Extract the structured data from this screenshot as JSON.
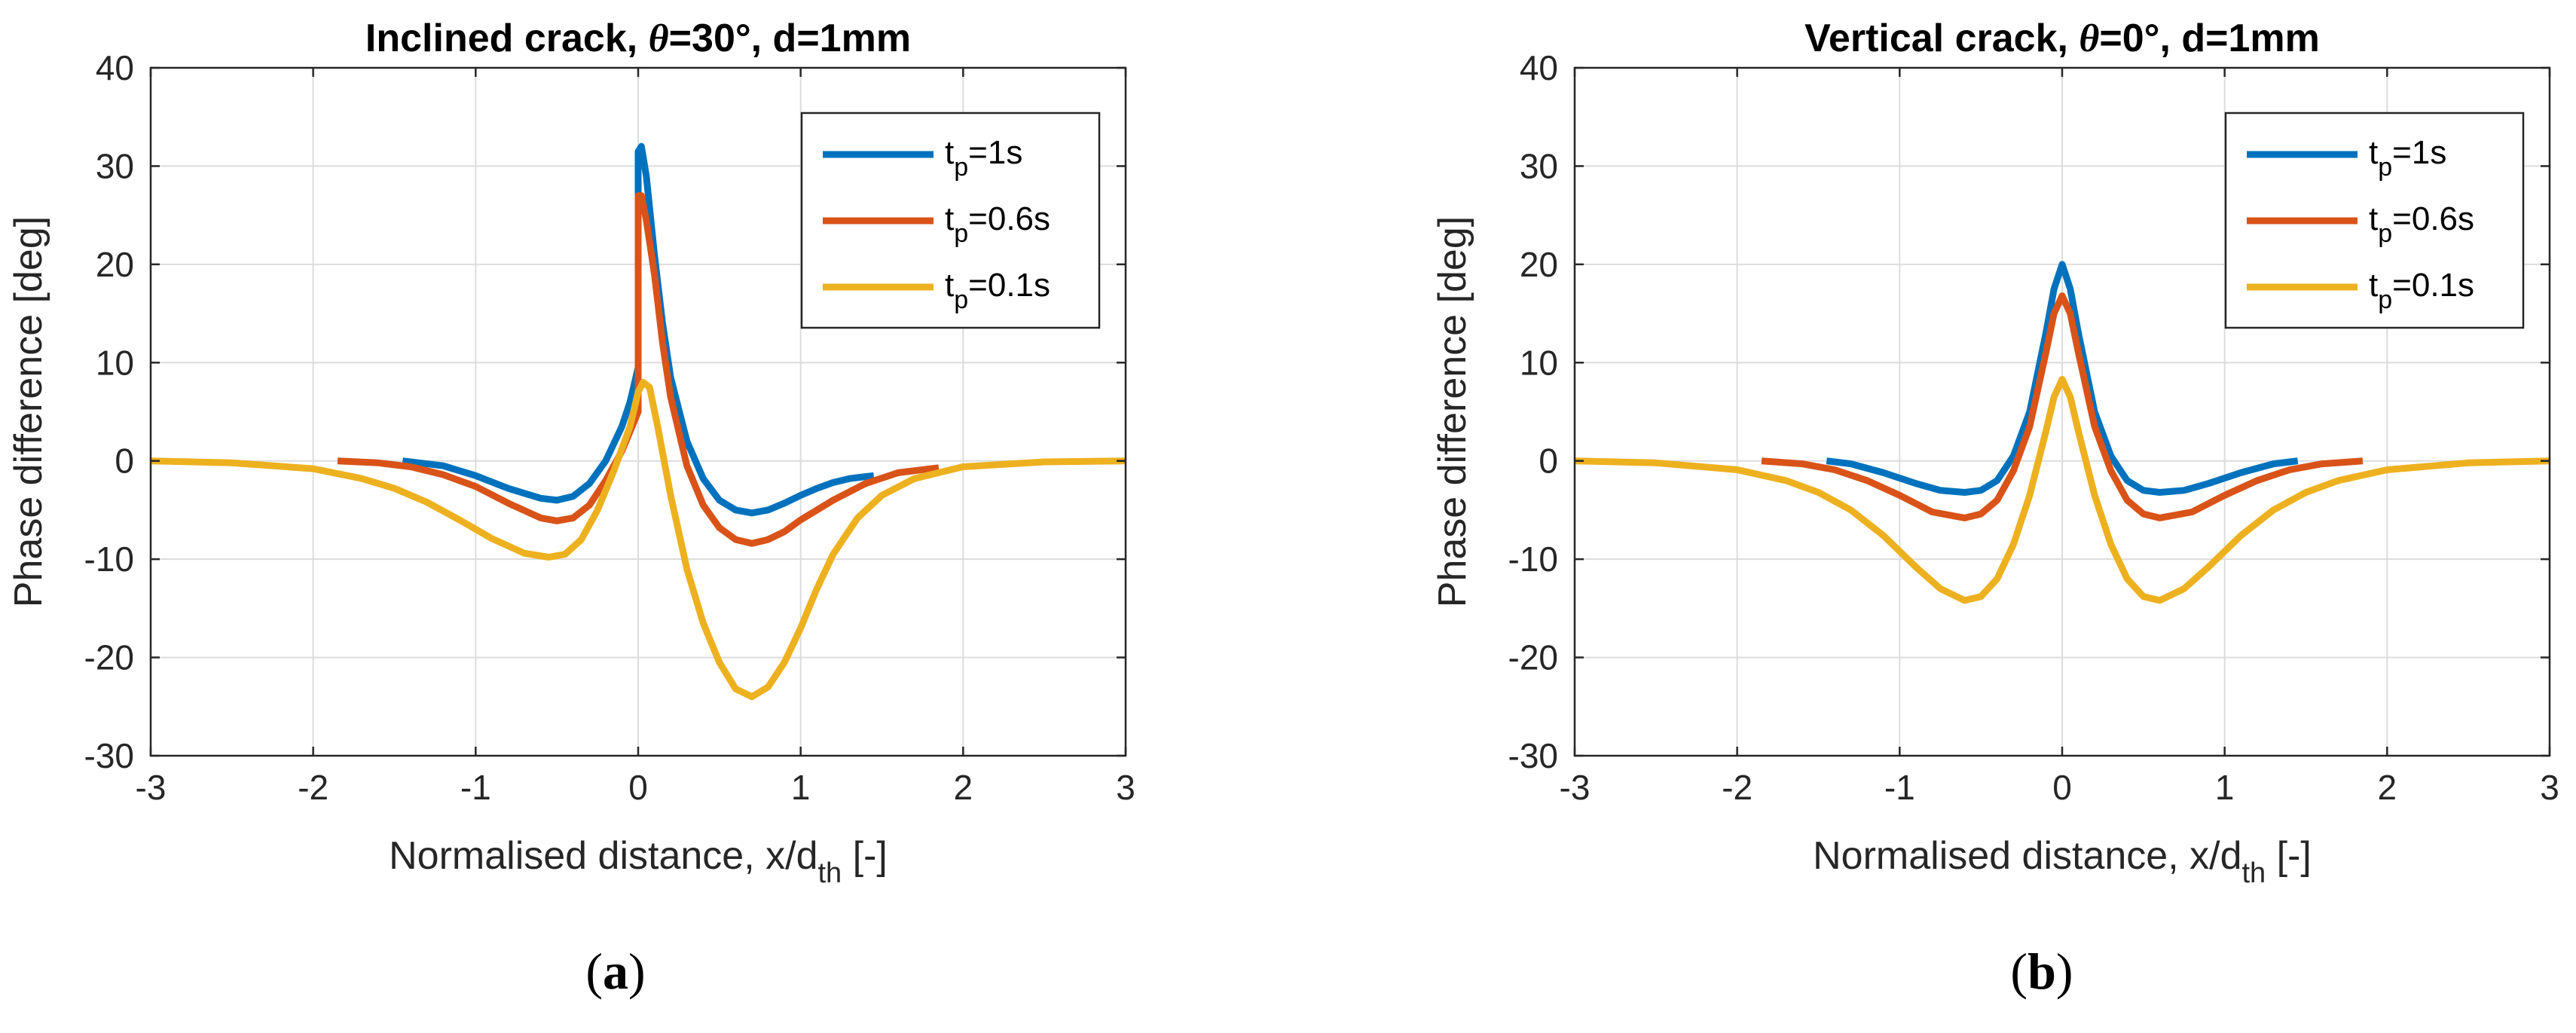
{
  "chart_data": [
    {
      "panel": "(a)",
      "panel_letter": "a",
      "type": "line",
      "title_prefix": "Inclined crack, ",
      "title_theta": "θ",
      "title_suffix": "=30°, d=1mm",
      "xlabel_main": "Normalised distance, x/d",
      "xlabel_sub": "th",
      "xlabel_end": " [-]",
      "ylabel": "Phase difference [deg]",
      "xlim": [
        -3,
        3
      ],
      "ylim": [
        -30,
        40
      ],
      "xticks": [
        "-3",
        "-2",
        "-1",
        "0",
        "1",
        "2",
        "3"
      ],
      "yticks": [
        "-30",
        "-20",
        "-10",
        "0",
        "10",
        "20",
        "30",
        "40"
      ],
      "grid": true,
      "legend_position": "top-right",
      "series": [
        {
          "name": "t_p=1s",
          "label_main": "t",
          "label_sub": "p",
          "label_end": "=1s",
          "color": "#0072BD",
          "x": [
            -1.45,
            -1.2,
            -1.0,
            -0.8,
            -0.6,
            -0.5,
            -0.4,
            -0.3,
            -0.2,
            -0.1,
            -0.05,
            0.0,
            0.0,
            0.02,
            0.05,
            0.1,
            0.15,
            0.2,
            0.3,
            0.4,
            0.5,
            0.6,
            0.7,
            0.8,
            0.9,
            1.0,
            1.1,
            1.2,
            1.3,
            1.45
          ],
          "y": [
            0,
            -0.5,
            -1.5,
            -2.8,
            -3.8,
            -4.0,
            -3.6,
            -2.3,
            0,
            3.5,
            6.0,
            9.5,
            31.5,
            32.0,
            29.0,
            21.0,
            14.0,
            8.5,
            2.0,
            -1.8,
            -4.0,
            -5.0,
            -5.3,
            -5.0,
            -4.3,
            -3.5,
            -2.8,
            -2.2,
            -1.8,
            -1.5
          ]
        },
        {
          "name": "t_p=0.6s",
          "label_main": "t",
          "label_sub": "p",
          "label_end": "=0.6s",
          "color": "#D95319",
          "x": [
            -1.85,
            -1.6,
            -1.4,
            -1.2,
            -1.0,
            -0.8,
            -0.6,
            -0.5,
            -0.4,
            -0.3,
            -0.2,
            -0.1,
            -0.05,
            0.0,
            0.0,
            0.02,
            0.05,
            0.1,
            0.15,
            0.2,
            0.3,
            0.4,
            0.5,
            0.6,
            0.7,
            0.8,
            0.9,
            1.0,
            1.2,
            1.4,
            1.6,
            1.85
          ],
          "y": [
            0,
            -0.2,
            -0.6,
            -1.4,
            -2.6,
            -4.3,
            -5.8,
            -6.1,
            -5.8,
            -4.5,
            -2.0,
            1.0,
            3.0,
            5.0,
            27.0,
            27.0,
            24.5,
            19.0,
            12.0,
            6.5,
            -0.5,
            -4.5,
            -6.8,
            -8.0,
            -8.4,
            -8.0,
            -7.2,
            -6.0,
            -4.0,
            -2.3,
            -1.2,
            -0.7
          ]
        },
        {
          "name": "t_p=0.1s",
          "label_main": "t",
          "label_sub": "p",
          "label_end": "=0.1s",
          "color": "#EDB120",
          "x": [
            -3.0,
            -2.5,
            -2.0,
            -1.7,
            -1.5,
            -1.3,
            -1.1,
            -0.9,
            -0.7,
            -0.55,
            -0.45,
            -0.35,
            -0.25,
            -0.15,
            -0.05,
            0.0,
            0.03,
            0.07,
            0.12,
            0.2,
            0.3,
            0.4,
            0.5,
            0.6,
            0.7,
            0.8,
            0.9,
            1.0,
            1.1,
            1.2,
            1.35,
            1.5,
            1.7,
            2.0,
            2.5,
            3.0
          ],
          "y": [
            0,
            -0.2,
            -0.8,
            -1.8,
            -2.8,
            -4.2,
            -6.0,
            -7.9,
            -9.4,
            -9.8,
            -9.5,
            -8.0,
            -5.0,
            -1.0,
            3.5,
            7.0,
            8.0,
            7.5,
            3.5,
            -3.5,
            -11.0,
            -16.5,
            -20.5,
            -23.2,
            -24.0,
            -23.0,
            -20.5,
            -17.0,
            -13.0,
            -9.5,
            -5.8,
            -3.5,
            -1.8,
            -0.6,
            -0.1,
            0
          ]
        }
      ]
    },
    {
      "panel": "(b)",
      "panel_letter": "b",
      "type": "line",
      "title_prefix": "Vertical crack, ",
      "title_theta": "θ",
      "title_suffix": "=0°, d=1mm",
      "xlabel_main": "Normalised distance, x/d",
      "xlabel_sub": "th",
      "xlabel_end": " [-]",
      "ylabel": "Phase difference [deg]",
      "xlim": [
        -3,
        3
      ],
      "ylim": [
        -30,
        40
      ],
      "xticks": [
        "-3",
        "-2",
        "-1",
        "0",
        "1",
        "2",
        "3"
      ],
      "yticks": [
        "-30",
        "-20",
        "-10",
        "0",
        "10",
        "20",
        "30",
        "40"
      ],
      "grid": true,
      "legend_position": "top-right",
      "series": [
        {
          "name": "t_p=1s",
          "label_main": "t",
          "label_sub": "p",
          "label_end": "=1s",
          "color": "#0072BD",
          "x": [
            -1.45,
            -1.3,
            -1.1,
            -0.9,
            -0.75,
            -0.6,
            -0.5,
            -0.4,
            -0.3,
            -0.2,
            -0.1,
            -0.05,
            0.0,
            0.05,
            0.1,
            0.2,
            0.3,
            0.4,
            0.5,
            0.6,
            0.75,
            0.9,
            1.1,
            1.3,
            1.45
          ],
          "y": [
            0,
            -0.3,
            -1.2,
            -2.3,
            -3.0,
            -3.2,
            -3.0,
            -2.0,
            0.5,
            5.0,
            13.0,
            17.5,
            20.0,
            17.5,
            13.0,
            5.0,
            0.5,
            -2.0,
            -3.0,
            -3.2,
            -3.0,
            -2.3,
            -1.2,
            -0.3,
            0
          ]
        },
        {
          "name": "t_p=0.6s",
          "label_main": "t",
          "label_sub": "p",
          "label_end": "=0.6s",
          "color": "#D95319",
          "x": [
            -1.85,
            -1.6,
            -1.4,
            -1.2,
            -1.0,
            -0.8,
            -0.6,
            -0.5,
            -0.4,
            -0.3,
            -0.2,
            -0.1,
            -0.05,
            0.0,
            0.05,
            0.1,
            0.2,
            0.3,
            0.4,
            0.5,
            0.6,
            0.8,
            1.0,
            1.2,
            1.4,
            1.6,
            1.85
          ],
          "y": [
            0,
            -0.3,
            -0.9,
            -2.0,
            -3.5,
            -5.2,
            -5.8,
            -5.4,
            -4.0,
            -1.0,
            3.5,
            11.0,
            15.0,
            16.8,
            15.0,
            11.0,
            3.5,
            -1.0,
            -4.0,
            -5.4,
            -5.8,
            -5.2,
            -3.5,
            -2.0,
            -0.9,
            -0.3,
            0
          ]
        },
        {
          "name": "t_p=0.1s",
          "label_main": "t",
          "label_sub": "p",
          "label_end": "=0.1s",
          "color": "#EDB120",
          "x": [
            -3.0,
            -2.5,
            -2.0,
            -1.7,
            -1.5,
            -1.3,
            -1.1,
            -0.9,
            -0.75,
            -0.6,
            -0.5,
            -0.4,
            -0.3,
            -0.2,
            -0.1,
            -0.05,
            0.0,
            0.05,
            0.1,
            0.2,
            0.3,
            0.4,
            0.5,
            0.6,
            0.75,
            0.9,
            1.1,
            1.3,
            1.5,
            1.7,
            2.0,
            2.5,
            3.0
          ],
          "y": [
            0,
            -0.2,
            -0.9,
            -2.0,
            -3.2,
            -5.0,
            -7.6,
            -10.8,
            -13.0,
            -14.2,
            -13.8,
            -12.0,
            -8.5,
            -3.5,
            3.0,
            6.5,
            8.3,
            6.5,
            3.0,
            -3.5,
            -8.5,
            -12.0,
            -13.8,
            -14.2,
            -13.0,
            -10.8,
            -7.6,
            -5.0,
            -3.2,
            -2.0,
            -0.9,
            -0.2,
            0
          ]
        }
      ]
    }
  ]
}
